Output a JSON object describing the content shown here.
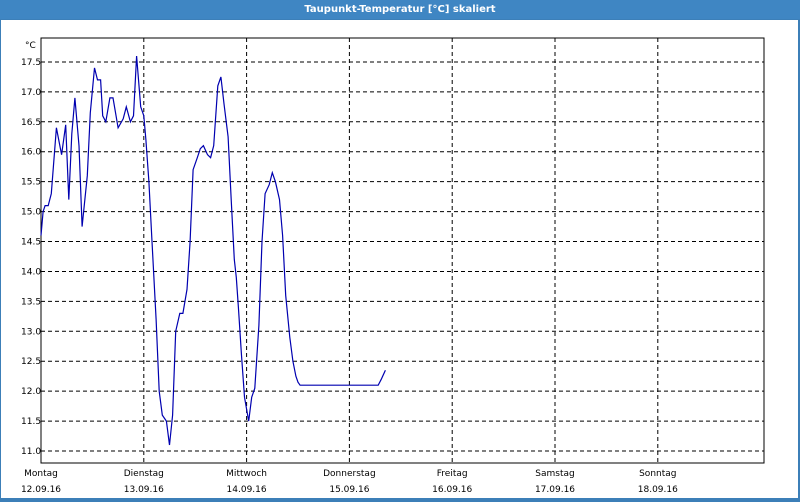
{
  "window": {
    "title": "Taupunkt-Temperatur [°C] skaliert"
  },
  "colors": {
    "titlebar": "#3f86c3",
    "series": "#0000b0",
    "grid": "#000000",
    "background": "#ffffff"
  },
  "chart_data": {
    "type": "line",
    "title": "Taupunkt-Temperatur [°C] skaliert",
    "ylabel": "°C",
    "xlabel": "",
    "ylim": [
      10.8,
      17.9
    ],
    "grid": true,
    "y_ticks": [
      "11.0",
      "11.5",
      "12.0",
      "12.5",
      "13.0",
      "13.5",
      "14.0",
      "14.5",
      "15.0",
      "15.5",
      "16.0",
      "16.5",
      "17.0",
      "17.5"
    ],
    "x_ticks": [
      {
        "day": "Montag",
        "date": "12.09.16"
      },
      {
        "day": "Dienstag",
        "date": "13.09.16"
      },
      {
        "day": "Mittwoch",
        "date": "14.09.16"
      },
      {
        "day": "Donnerstag",
        "date": "15.09.16"
      },
      {
        "day": "Freitag",
        "date": "16.09.16"
      },
      {
        "day": "Samstag",
        "date": "17.09.16"
      },
      {
        "day": "Sonntag",
        "date": "18.09.16"
      }
    ],
    "series": [
      {
        "x": [
          0,
          0.02,
          0.04,
          0.07,
          0.1,
          0.15,
          0.2,
          0.24,
          0.27,
          0.3,
          0.33,
          0.37,
          0.4,
          0.45,
          0.48,
          0.52,
          0.55,
          0.58,
          0.6,
          0.63,
          0.67,
          0.7,
          0.75,
          0.8,
          0.83,
          0.87,
          0.9,
          0.93,
          0.97,
          1.0,
          1.02,
          1.05,
          1.08,
          1.12,
          1.15,
          1.18,
          1.22,
          1.25,
          1.28,
          1.31,
          1.35,
          1.38,
          1.42,
          1.45,
          1.48,
          1.52,
          1.55,
          1.58,
          1.62,
          1.65,
          1.68,
          1.72,
          1.75,
          1.78,
          1.82,
          1.85,
          1.88,
          1.9,
          1.92,
          1.95,
          1.98,
          2.02,
          2.05,
          2.08,
          2.12,
          2.15,
          2.18,
          2.22,
          2.25,
          2.28,
          2.32,
          2.35,
          2.38,
          2.42,
          2.45,
          2.48,
          2.5,
          2.52,
          2.55,
          2.58,
          2.62,
          2.65,
          2.68,
          2.72,
          2.75,
          2.78,
          2.82,
          2.85,
          2.88,
          2.92,
          2.95,
          2.98,
          3.0,
          3.02,
          3.05,
          3.08,
          3.1,
          3.12,
          3.15,
          3.18,
          3.22,
          3.25,
          3.28,
          3.31,
          3.35
        ],
        "values": [
          14.6,
          15.0,
          15.1,
          15.1,
          15.3,
          16.4,
          15.95,
          16.45,
          15.2,
          16.3,
          16.9,
          16.1,
          14.75,
          15.6,
          16.65,
          17.4,
          17.2,
          17.2,
          16.6,
          16.5,
          16.9,
          16.9,
          16.4,
          16.55,
          16.75,
          16.5,
          16.6,
          17.6,
          16.75,
          16.6,
          16.2,
          15.5,
          14.5,
          13.2,
          12.0,
          11.6,
          11.5,
          11.1,
          11.6,
          13.0,
          13.3,
          13.3,
          13.7,
          14.5,
          15.7,
          15.9,
          16.05,
          16.1,
          15.95,
          15.9,
          16.1,
          17.1,
          17.25,
          16.8,
          16.25,
          15.2,
          14.2,
          13.9,
          13.4,
          12.6,
          11.9,
          11.5,
          11.9,
          12.05,
          13.1,
          14.5,
          15.3,
          15.45,
          15.65,
          15.5,
          15.2,
          14.6,
          13.6,
          12.9,
          12.5,
          12.25,
          12.15,
          12.1,
          12.1,
          12.1,
          12.1,
          12.1,
          12.1,
          12.1,
          12.1,
          12.1,
          12.1,
          12.1,
          12.1,
          12.1,
          12.1,
          12.1,
          12.1,
          12.1,
          12.1,
          12.1,
          12.1,
          12.1,
          12.1,
          12.1,
          12.1,
          12.1,
          12.1,
          12.2,
          12.35
        ]
      }
    ]
  }
}
